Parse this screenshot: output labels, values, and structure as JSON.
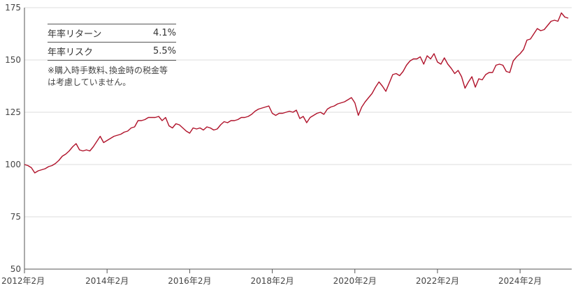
{
  "chart_data": {
    "type": "line",
    "title": "",
    "xlabel": "",
    "ylabel": "",
    "ylim": [
      50,
      175
    ],
    "yticks": [
      50,
      75,
      100,
      125,
      150,
      175
    ],
    "xlim": [
      "2012-02",
      "2025-05"
    ],
    "xticks": [
      {
        "date": "2012-02",
        "label": "2012年2月"
      },
      {
        "date": "2014-02",
        "label": "2014年2月"
      },
      {
        "date": "2016-02",
        "label": "2016年2月"
      },
      {
        "date": "2018-02",
        "label": "2018年2月"
      },
      {
        "date": "2020-02",
        "label": "2020年2月"
      },
      {
        "date": "2022-02",
        "label": "2022年2月"
      },
      {
        "date": "2024-02",
        "label": "2024年2月"
      }
    ],
    "grid": true,
    "series": [
      {
        "color": "#b0122a",
        "points": [
          [
            "2012-02",
            100.0
          ],
          [
            "2012-03",
            99.5
          ],
          [
            "2012-04",
            98.5
          ],
          [
            "2012-05",
            96.0
          ],
          [
            "2012-06",
            97.0
          ],
          [
            "2012-07",
            97.5
          ],
          [
            "2012-08",
            98.0
          ],
          [
            "2012-09",
            99.0
          ],
          [
            "2012-10",
            99.5
          ],
          [
            "2012-11",
            100.5
          ],
          [
            "2012-12",
            102.0
          ],
          [
            "2013-01",
            104.0
          ],
          [
            "2013-02",
            105.0
          ],
          [
            "2013-03",
            106.5
          ],
          [
            "2013-04",
            108.5
          ],
          [
            "2013-05",
            110.0
          ],
          [
            "2013-06",
            107.0
          ],
          [
            "2013-07",
            106.5
          ],
          [
            "2013-08",
            107.0
          ],
          [
            "2013-09",
            106.5
          ],
          [
            "2013-10",
            108.5
          ],
          [
            "2013-11",
            111.0
          ],
          [
            "2013-12",
            113.5
          ],
          [
            "2014-01",
            110.5
          ],
          [
            "2014-02",
            111.5
          ],
          [
            "2014-03",
            112.5
          ],
          [
            "2014-04",
            113.5
          ],
          [
            "2014-05",
            114.0
          ],
          [
            "2014-06",
            114.5
          ],
          [
            "2014-07",
            115.5
          ],
          [
            "2014-08",
            116.0
          ],
          [
            "2014-09",
            117.5
          ],
          [
            "2014-10",
            118.0
          ],
          [
            "2014-11",
            121.0
          ],
          [
            "2014-12",
            121.0
          ],
          [
            "2015-01",
            121.5
          ],
          [
            "2015-02",
            122.5
          ],
          [
            "2015-03",
            122.5
          ],
          [
            "2015-04",
            122.5
          ],
          [
            "2015-05",
            123.0
          ],
          [
            "2015-06",
            121.0
          ],
          [
            "2015-07",
            122.5
          ],
          [
            "2015-08",
            118.5
          ],
          [
            "2015-09",
            117.5
          ],
          [
            "2015-10",
            119.5
          ],
          [
            "2015-11",
            119.0
          ],
          [
            "2015-12",
            117.5
          ],
          [
            "2016-01",
            116.0
          ],
          [
            "2016-02",
            115.0
          ],
          [
            "2016-03",
            117.5
          ],
          [
            "2016-04",
            117.0
          ],
          [
            "2016-05",
            117.5
          ],
          [
            "2016-06",
            116.5
          ],
          [
            "2016-07",
            118.0
          ],
          [
            "2016-08",
            117.5
          ],
          [
            "2016-09",
            116.5
          ],
          [
            "2016-10",
            117.0
          ],
          [
            "2016-11",
            119.0
          ],
          [
            "2016-12",
            120.5
          ],
          [
            "2017-01",
            120.0
          ],
          [
            "2017-02",
            121.0
          ],
          [
            "2017-03",
            121.0
          ],
          [
            "2017-04",
            121.5
          ],
          [
            "2017-05",
            122.5
          ],
          [
            "2017-06",
            122.5
          ],
          [
            "2017-07",
            123.0
          ],
          [
            "2017-08",
            124.0
          ],
          [
            "2017-09",
            125.5
          ],
          [
            "2017-10",
            126.5
          ],
          [
            "2017-11",
            127.0
          ],
          [
            "2017-12",
            127.5
          ],
          [
            "2018-01",
            128.0
          ],
          [
            "2018-02",
            124.5
          ],
          [
            "2018-03",
            123.5
          ],
          [
            "2018-04",
            124.5
          ],
          [
            "2018-05",
            124.5
          ],
          [
            "2018-06",
            125.0
          ],
          [
            "2018-07",
            125.5
          ],
          [
            "2018-08",
            125.0
          ],
          [
            "2018-09",
            126.0
          ],
          [
            "2018-10",
            122.0
          ],
          [
            "2018-11",
            123.0
          ],
          [
            "2018-12",
            120.0
          ],
          [
            "2019-01",
            122.5
          ],
          [
            "2019-02",
            123.5
          ],
          [
            "2019-03",
            124.5
          ],
          [
            "2019-04",
            125.0
          ],
          [
            "2019-05",
            124.0
          ],
          [
            "2019-06",
            126.5
          ],
          [
            "2019-07",
            127.5
          ],
          [
            "2019-08",
            128.0
          ],
          [
            "2019-09",
            129.0
          ],
          [
            "2019-10",
            129.5
          ],
          [
            "2019-11",
            130.0
          ],
          [
            "2019-12",
            131.0
          ],
          [
            "2020-01",
            132.0
          ],
          [
            "2020-02",
            129.5
          ],
          [
            "2020-03",
            123.5
          ],
          [
            "2020-04",
            127.5
          ],
          [
            "2020-05",
            130.0
          ],
          [
            "2020-06",
            132.0
          ],
          [
            "2020-07",
            134.0
          ],
          [
            "2020-08",
            137.0
          ],
          [
            "2020-09",
            139.5
          ],
          [
            "2020-10",
            137.5
          ],
          [
            "2020-11",
            135.0
          ],
          [
            "2020-12",
            139.0
          ],
          [
            "2021-01",
            143.0
          ],
          [
            "2021-02",
            143.5
          ],
          [
            "2021-03",
            142.5
          ],
          [
            "2021-04",
            144.5
          ],
          [
            "2021-05",
            147.5
          ],
          [
            "2021-06",
            149.5
          ],
          [
            "2021-07",
            150.5
          ],
          [
            "2021-08",
            150.5
          ],
          [
            "2021-09",
            151.5
          ],
          [
            "2021-10",
            148.0
          ],
          [
            "2021-11",
            152.0
          ],
          [
            "2021-12",
            150.5
          ],
          [
            "2022-01",
            153.0
          ],
          [
            "2022-02",
            149.0
          ],
          [
            "2022-03",
            148.0
          ],
          [
            "2022-04",
            151.0
          ],
          [
            "2022-05",
            148.0
          ],
          [
            "2022-06",
            146.0
          ],
          [
            "2022-07",
            143.5
          ],
          [
            "2022-08",
            145.0
          ],
          [
            "2022-09",
            142.0
          ],
          [
            "2022-10",
            136.5
          ],
          [
            "2022-11",
            139.5
          ],
          [
            "2022-12",
            142.0
          ],
          [
            "2023-01",
            137.0
          ],
          [
            "2023-02",
            141.0
          ],
          [
            "2023-03",
            140.5
          ],
          [
            "2023-04",
            143.0
          ],
          [
            "2023-05",
            144.0
          ],
          [
            "2023-06",
            144.0
          ],
          [
            "2023-07",
            147.5
          ],
          [
            "2023-08",
            148.0
          ],
          [
            "2023-09",
            147.5
          ],
          [
            "2023-10",
            144.5
          ],
          [
            "2023-11",
            144.0
          ],
          [
            "2023-12",
            149.5
          ],
          [
            "2024-01",
            151.5
          ],
          [
            "2024-02",
            153.0
          ],
          [
            "2024-03",
            155.0
          ],
          [
            "2024-04",
            159.5
          ],
          [
            "2024-05",
            160.0
          ],
          [
            "2024-06",
            162.5
          ],
          [
            "2024-07",
            165.0
          ],
          [
            "2024-08",
            164.0
          ],
          [
            "2024-09",
            164.5
          ],
          [
            "2024-10",
            166.5
          ],
          [
            "2024-11",
            168.5
          ],
          [
            "2024-12",
            169.0
          ],
          [
            "2025-01",
            168.5
          ],
          [
            "2025-02",
            172.5
          ],
          [
            "2025-03",
            170.5
          ],
          [
            "2025-04",
            170.0
          ]
        ]
      }
    ]
  },
  "stats": {
    "rows": [
      {
        "label": "年率リターン",
        "value": "4.1%"
      },
      {
        "label": "年率リスク",
        "value": "5.5%"
      }
    ],
    "note": "※購入時手数料､換金時の税金等は考慮していません。"
  }
}
